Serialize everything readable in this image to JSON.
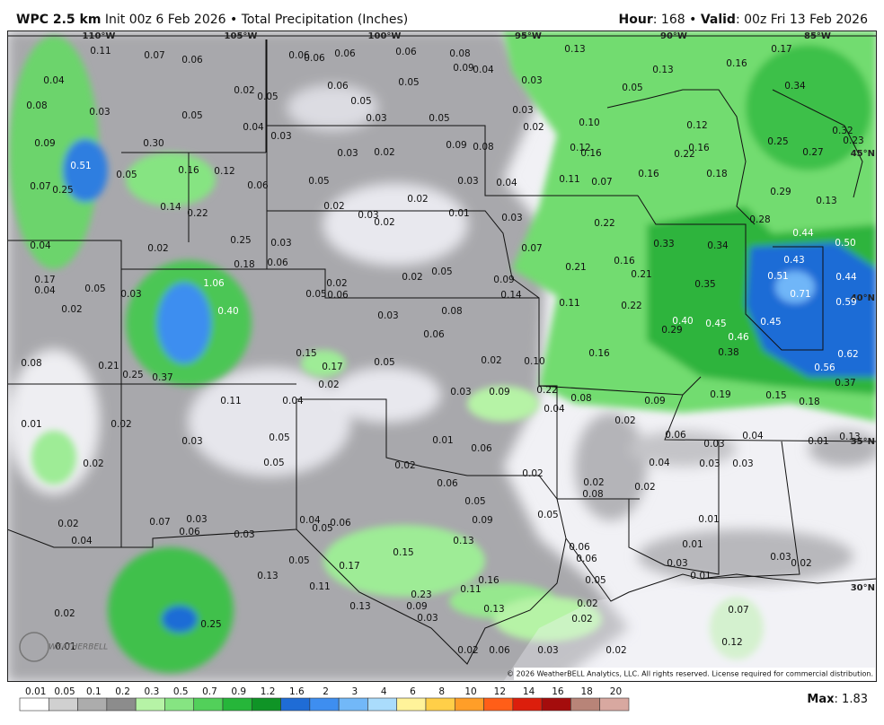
{
  "header": {
    "model": "WPC 2.5 km",
    "subtitle": "Init 00z 6 Feb 2026 • Total Precipitation (Inches)",
    "hour_label": "Hour",
    "hour": "168",
    "valid_label": "Valid",
    "valid": "00z Fri 13 Feb 2026",
    "separator": "•",
    "colon": ":"
  },
  "map": {
    "longitudes": [
      "110°W",
      "105°W",
      "100°W",
      "95°W",
      "90°W",
      "85°W"
    ],
    "latitudes": [
      "45°N",
      "40°N",
      "35°N",
      "30°N"
    ],
    "copyright": "© 2026 WeatherBELL Analytics, LLC. All rights reserved. License required for commercial distribution.",
    "logo": "WEATHERBELL",
    "point_values": [
      "0.11",
      "0.07",
      "0.06",
      "0.06",
      "0.06",
      "0.06",
      "0.06",
      "0.08",
      "0.09",
      "0.04",
      "0.13",
      "0.17",
      "0.13",
      "0.16",
      "0.04",
      "0.05",
      "0.06",
      "0.05",
      "0.03",
      "0.34",
      "0.05",
      "0.08",
      "0.03",
      "0.05",
      "0.02",
      "0.04",
      "0.05",
      "0.03",
      "0.05",
      "0.03",
      "0.02",
      "0.10",
      "0.12",
      "0.25",
      "0.32",
      "0.03",
      "0.09",
      "0.08",
      "0.12",
      "0.16",
      "0.16",
      "0.22",
      "0.27",
      "0.23",
      "0.09",
      "0.30",
      "0.51",
      "0.05",
      "0.16",
      "0.12",
      "0.03",
      "0.02",
      "0.03",
      "0.04",
      "0.11",
      "0.07",
      "0.16",
      "0.18",
      "0.07",
      "0.25",
      "0.06",
      "0.05",
      "0.14",
      "0.22",
      "0.02",
      "0.03",
      "0.02",
      "0.02",
      "0.01",
      "0.03",
      "0.22",
      "0.29",
      "0.13",
      "0.28",
      "0.04",
      "0.02",
      "0.25",
      "0.03",
      "0.44",
      "0.50",
      "0.34",
      "0.33",
      "0.07",
      "0.18",
      "0.06",
      "0.43",
      "0.21",
      "0.16",
      "0.05",
      "0.02",
      "0.17",
      "0.04",
      "0.05",
      "0.03",
      "1.06",
      "0.02",
      "0.06",
      "0.05",
      "0.09",
      "0.14",
      "0.21",
      "0.35",
      "0.51",
      "0.44",
      "0.71",
      "0.59",
      "0.02",
      "0.40",
      "0.03",
      "0.08",
      "0.11",
      "0.22",
      "0.40",
      "0.45",
      "0.45",
      "0.29",
      "0.46",
      "0.06",
      "0.38",
      "0.62",
      "0.15",
      "0.17",
      "0.05",
      "0.02",
      "0.10",
      "0.16",
      "0.56",
      "0.08",
      "0.21",
      "0.25",
      "0.37",
      "0.02",
      "0.03",
      "0.09",
      "0.22",
      "0.37",
      "0.19",
      "0.15",
      "0.18",
      "0.11",
      "0.04",
      "0.08",
      "0.09",
      "0.01",
      "0.02",
      "0.04",
      "0.02",
      "0.05",
      "0.03",
      "0.01",
      "0.06",
      "0.06",
      "0.03",
      "0.04",
      "0.01",
      "0.13",
      "0.02",
      "0.05",
      "0.02",
      "0.04",
      "0.03",
      "0.03",
      "0.02",
      "0.06",
      "0.02",
      "0.08",
      "0.02",
      "0.05",
      "0.05",
      "0.02",
      "0.07",
      "0.03",
      "0.04",
      "0.05",
      "0.06",
      "0.09",
      "0.01",
      "0.04",
      "0.06",
      "0.03",
      "0.13",
      "0.01",
      "0.15",
      "0.06",
      "0.06",
      "0.05",
      "0.17",
      "0.03",
      "0.03",
      "0.02",
      "0.13",
      "0.16",
      "0.05",
      "0.01",
      "0.11",
      "0.11",
      "0.23",
      "0.02",
      "0.02",
      "0.25",
      "0.13",
      "0.09",
      "0.13",
      "0.07",
      "0.03",
      "0.02",
      "0.01",
      "0.02",
      "0.06",
      "0.03",
      "0.02",
      "0.12"
    ]
  },
  "legend": {
    "ticks": [
      0.01,
      0.05,
      0.1,
      0.2,
      0.3,
      0.5,
      0.7,
      0.9,
      1.2,
      1.6,
      2,
      3,
      4,
      6,
      8,
      10,
      12,
      14,
      16,
      18,
      20
    ],
    "colors": [
      "#ffffff",
      "#d0d0d0",
      "#acacac",
      "#8c8c8c",
      "#b6f3a6",
      "#86e482",
      "#52d05a",
      "#26b63a",
      "#0f9426",
      "#1f6cd6",
      "#3e8ef0",
      "#72b8f8",
      "#aadcfc",
      "#fff39a",
      "#ffcf48",
      "#ff9e28",
      "#ff5e18",
      "#dc1e0c",
      "#a40c0c",
      "#b88478",
      "#d8a8a0"
    ],
    "max_label": "Max",
    "max": 1.83
  }
}
